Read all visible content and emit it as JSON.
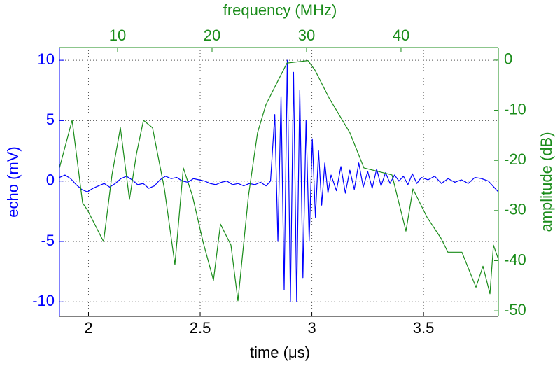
{
  "chart_data": {
    "type": "line",
    "xlabel": "time (μs)",
    "x2label": "frequency (MHz)",
    "ylabel": "echo (mV)",
    "y2label": "amplitude (dB)",
    "xlim": [
      1.87,
      3.835
    ],
    "xticks": [
      2,
      2.5,
      3,
      3.5
    ],
    "x2lim": [
      3.85,
      50.3
    ],
    "x2ticks": [
      10,
      20,
      30,
      40
    ],
    "ylim": [
      -11.2,
      11.05
    ],
    "yticks": [
      -10,
      -5,
      0,
      5,
      10
    ],
    "y2lim": [
      -51.1,
      2.5
    ],
    "y2ticks": [
      0,
      -10,
      -20,
      -30,
      -40,
      -50
    ],
    "grid": true,
    "series": [
      {
        "color": "#0000ff",
        "x": [
          1.87,
          1.895,
          1.92,
          1.945,
          1.97,
          1.995,
          2.02,
          2.045,
          2.07,
          2.095,
          2.12,
          2.145,
          2.17,
          2.195,
          2.22,
          2.245,
          2.27,
          2.295,
          2.32,
          2.345,
          2.37,
          2.395,
          2.42,
          2.445,
          2.47,
          2.495,
          2.52,
          2.545,
          2.57,
          2.595,
          2.62,
          2.645,
          2.67,
          2.695,
          2.72,
          2.745,
          2.77,
          2.795,
          2.815,
          2.834,
          2.848,
          2.862,
          2.876,
          2.89,
          2.904,
          2.918,
          2.932,
          2.946,
          2.96,
          2.974,
          2.988,
          3.002,
          3.016,
          3.03,
          3.044,
          3.058,
          3.072,
          3.086,
          3.11,
          3.13,
          3.15,
          3.17,
          3.19,
          3.21,
          3.23,
          3.25,
          3.27,
          3.29,
          3.31,
          3.33,
          3.35,
          3.37,
          3.39,
          3.41,
          3.43,
          3.45,
          3.47,
          3.49,
          3.52,
          3.55,
          3.58,
          3.61,
          3.64,
          3.67,
          3.7,
          3.73,
          3.76,
          3.79,
          3.82,
          3.835
        ],
        "values": [
          0.3,
          0.5,
          0.2,
          -0.3,
          -0.7,
          -0.9,
          -0.6,
          -0.4,
          -0.2,
          -0.5,
          -0.2,
          0.2,
          0.4,
          0.1,
          -0.3,
          -0.2,
          -0.6,
          -0.4,
          0.1,
          0.4,
          0.2,
          0.3,
          0.0,
          -0.1,
          0.2,
          0.1,
          0.0,
          -0.2,
          -0.3,
          -0.1,
          0.0,
          -0.3,
          -0.2,
          -0.4,
          -0.2,
          -0.3,
          -0.1,
          -0.4,
          0.0,
          5.5,
          -5,
          7,
          -9,
          10,
          -10,
          9,
          -10,
          7.5,
          -8,
          5,
          -5,
          3.5,
          -3,
          2.5,
          -2,
          1.5,
          -1,
          0.5,
          -0.8,
          1.2,
          -1.0,
          0.9,
          -0.7,
          1.5,
          -0.5,
          0.8,
          -0.6,
          1.0,
          -0.4,
          0.7,
          -0.2,
          0.5,
          0.0,
          0.4,
          -0.3,
          0.6,
          -0.2,
          0.3,
          0.1,
          0.4,
          -0.2,
          0.2,
          -0.1,
          0.1,
          -0.2,
          0.3,
          0.2,
          0.0,
          -0.6,
          -0.9
        ]
      },
      {
        "color": "#1a8c1a",
        "axis": "y2",
        "xaxis": "x2",
        "x": [
          3.85,
          5.19,
          6.3,
          6.81,
          8.52,
          9.41,
          10.3,
          11.26,
          12.0,
          12.74,
          13.7,
          14.96,
          16.07,
          16.96,
          17.93,
          19.04,
          20.15,
          20.89,
          22.0,
          22.74,
          23.85,
          24.81,
          25.7,
          26.44,
          27.93,
          30.15,
          30.89,
          32.37,
          34.59,
          36.07,
          37.56,
          39.04,
          40.52,
          41.26,
          42.74,
          44.22,
          44.96,
          46.44,
          47.93,
          48.67,
          49.41,
          49.78,
          50.3
        ],
        "values": [
          -21.5,
          -12.0,
          -28.5,
          -29.9,
          -36.2,
          -22.9,
          -13.5,
          -27.8,
          -18.7,
          -12.0,
          -13.5,
          -25.7,
          -40.8,
          -21.5,
          -27.1,
          -36.2,
          -43.9,
          -32.7,
          -36.9,
          -48.0,
          -27.1,
          -14.5,
          -8.9,
          -6.1,
          -0.6,
          -0.1,
          -2.0,
          -7.5,
          -14.5,
          -21.5,
          -22.2,
          -22.9,
          -34.1,
          -25.7,
          -31.3,
          -35.5,
          -38.3,
          -38.3,
          -45.3,
          -41.1,
          -46.6,
          -36.9,
          -39.7
        ]
      }
    ]
  }
}
